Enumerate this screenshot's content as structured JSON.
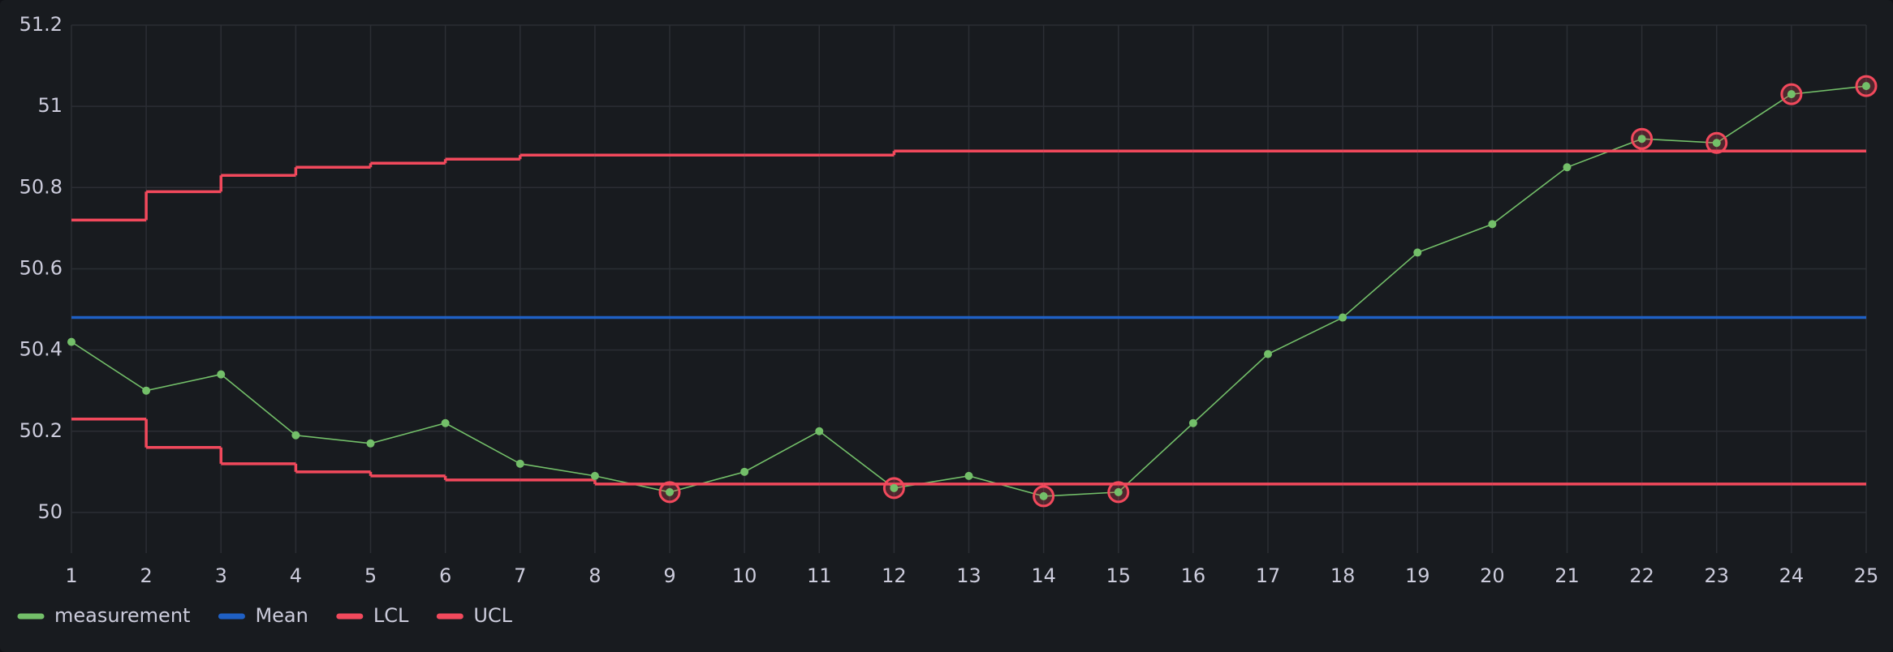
{
  "chart_data": {
    "type": "line",
    "x": [
      1,
      2,
      3,
      4,
      5,
      6,
      7,
      8,
      9,
      10,
      11,
      12,
      13,
      14,
      15,
      16,
      17,
      18,
      19,
      20,
      21,
      22,
      23,
      24,
      25
    ],
    "series": [
      {
        "name": "measurement",
        "color": "#73bf69",
        "values": [
          50.42,
          50.3,
          50.34,
          50.19,
          50.17,
          50.22,
          50.12,
          50.09,
          50.05,
          50.1,
          50.2,
          50.06,
          50.09,
          50.04,
          50.05,
          50.22,
          50.39,
          50.48,
          50.64,
          50.71,
          50.85,
          50.92,
          50.91,
          51.03,
          51.05
        ]
      },
      {
        "name": "Mean",
        "color": "#1f60c4",
        "values": [
          50.48,
          50.48,
          50.48,
          50.48,
          50.48,
          50.48,
          50.48,
          50.48,
          50.48,
          50.48,
          50.48,
          50.48,
          50.48,
          50.48,
          50.48,
          50.48,
          50.48,
          50.48,
          50.48,
          50.48,
          50.48,
          50.48,
          50.48,
          50.48,
          50.48
        ]
      },
      {
        "name": "LCL",
        "color": "#f2495c",
        "step": true,
        "values": [
          50.23,
          50.16,
          50.12,
          50.1,
          50.09,
          50.08,
          50.08,
          50.07,
          50.07,
          50.07,
          50.07,
          50.07,
          50.07,
          50.07,
          50.07,
          50.07,
          50.07,
          50.07,
          50.07,
          50.07,
          50.07,
          50.07,
          50.07,
          50.07,
          50.07
        ]
      },
      {
        "name": "UCL",
        "color": "#f2495c",
        "step": true,
        "values": [
          50.72,
          50.79,
          50.83,
          50.85,
          50.86,
          50.87,
          50.88,
          50.88,
          50.88,
          50.88,
          50.88,
          50.89,
          50.89,
          50.89,
          50.89,
          50.89,
          50.89,
          50.89,
          50.89,
          50.89,
          50.89,
          50.89,
          50.89,
          50.89,
          50.89
        ]
      }
    ],
    "xlim": [
      1,
      25
    ],
    "xticks": [
      1,
      2,
      3,
      4,
      5,
      6,
      7,
      8,
      9,
      10,
      11,
      12,
      13,
      14,
      15,
      16,
      17,
      18,
      19,
      20,
      21,
      22,
      23,
      24,
      25
    ],
    "ylim": [
      49.9,
      51.2
    ],
    "yticks": [
      50,
      50.2,
      50.4,
      50.6,
      50.8,
      51,
      51.2
    ],
    "grid": true,
    "legend": "bottom-left"
  }
}
